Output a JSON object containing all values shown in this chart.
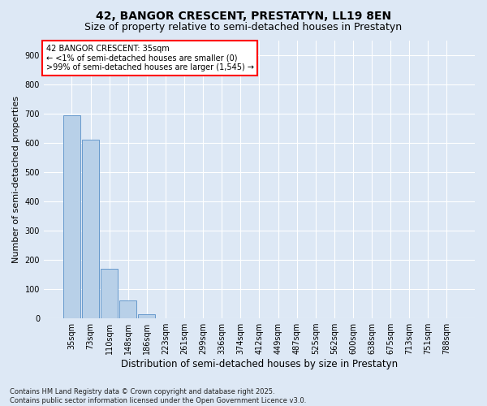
{
  "title": "42, BANGOR CRESCENT, PRESTATYN, LL19 8EN",
  "subtitle": "Size of property relative to semi-detached houses in Prestatyn",
  "xlabel": "Distribution of semi-detached houses by size in Prestatyn",
  "ylabel": "Number of semi-detached properties",
  "categories": [
    "35sqm",
    "73sqm",
    "110sqm",
    "148sqm",
    "186sqm",
    "223sqm",
    "261sqm",
    "299sqm",
    "336sqm",
    "374sqm",
    "412sqm",
    "449sqm",
    "487sqm",
    "525sqm",
    "562sqm",
    "600sqm",
    "638sqm",
    "675sqm",
    "713sqm",
    "751sqm",
    "788sqm"
  ],
  "bar_values": [
    695,
    610,
    170,
    62,
    13,
    0,
    0,
    0,
    0,
    0,
    0,
    0,
    0,
    0,
    0,
    0,
    0,
    0,
    0,
    0,
    0
  ],
  "bar_color": "#b8d0e8",
  "bar_edge_color": "#6699cc",
  "annotation_text": "42 BANGOR CRESCENT: 35sqm\n← <1% of semi-detached houses are smaller (0)\n>99% of semi-detached houses are larger (1,545) →",
  "annotation_box_color": "white",
  "annotation_box_edge_color": "red",
  "ylim": [
    0,
    950
  ],
  "yticks": [
    0,
    100,
    200,
    300,
    400,
    500,
    600,
    700,
    800,
    900
  ],
  "background_color": "#dde8f5",
  "grid_color": "white",
  "footer": "Contains HM Land Registry data © Crown copyright and database right 2025.\nContains public sector information licensed under the Open Government Licence v3.0.",
  "title_fontsize": 10,
  "subtitle_fontsize": 9,
  "ylabel_fontsize": 8,
  "xlabel_fontsize": 8.5,
  "tick_fontsize": 7,
  "annotation_fontsize": 7,
  "footer_fontsize": 6
}
